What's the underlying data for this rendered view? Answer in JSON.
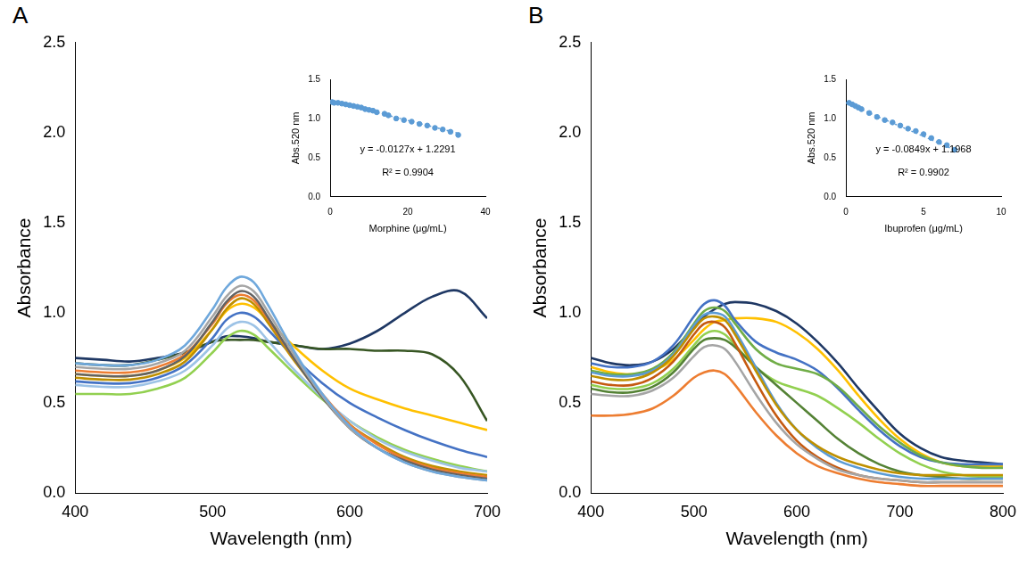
{
  "chart_data": [
    {
      "type": "line",
      "title": "A",
      "xlabel": "Wavelength (nm)",
      "ylabel": "Absorbance",
      "grid": false,
      "xlim": [
        400,
        700
      ],
      "xticks": [
        400,
        500,
        600,
        700
      ],
      "ylim": [
        0,
        2.5
      ],
      "yticks": [
        {
          "value": 0,
          "label": "0.0"
        },
        {
          "value": 0.5,
          "label": "0.5"
        },
        {
          "value": 1,
          "label": "1.0"
        },
        {
          "value": 1.5,
          "label": "1.5"
        },
        {
          "value": 2,
          "label": "2.0"
        },
        {
          "value": 2.5,
          "label": "2.5"
        }
      ],
      "x": [
        400,
        420,
        440,
        460,
        480,
        500,
        510,
        520,
        530,
        540,
        560,
        580,
        600,
        620,
        640,
        660,
        680,
        700
      ],
      "series": [
        {
          "color": "#6fa8dc",
          "values": [
            0.72,
            0.71,
            0.71,
            0.74,
            0.82,
            1.02,
            1.14,
            1.2,
            1.17,
            1.05,
            0.78,
            0.55,
            0.37,
            0.25,
            0.17,
            0.12,
            0.09,
            0.07
          ]
        },
        {
          "color": "#a5a5a5",
          "values": [
            0.7,
            0.69,
            0.69,
            0.72,
            0.79,
            0.98,
            1.09,
            1.15,
            1.12,
            1.01,
            0.76,
            0.54,
            0.36,
            0.25,
            0.17,
            0.12,
            0.09,
            0.07
          ]
        },
        {
          "color": "#636363",
          "values": [
            0.66,
            0.65,
            0.65,
            0.68,
            0.76,
            0.95,
            1.06,
            1.12,
            1.09,
            0.98,
            0.74,
            0.53,
            0.36,
            0.25,
            0.18,
            0.13,
            0.1,
            0.08
          ]
        },
        {
          "color": "#ed7d31",
          "values": [
            0.68,
            0.67,
            0.67,
            0.7,
            0.77,
            0.94,
            1.05,
            1.1,
            1.07,
            0.97,
            0.74,
            0.55,
            0.38,
            0.27,
            0.19,
            0.14,
            0.11,
            0.09
          ]
        },
        {
          "color": "#bf9000",
          "values": [
            0.64,
            0.63,
            0.63,
            0.66,
            0.73,
            0.91,
            1.02,
            1.08,
            1.05,
            0.95,
            0.73,
            0.54,
            0.38,
            0.28,
            0.2,
            0.15,
            0.12,
            0.1
          ]
        },
        {
          "color": "#9dc3e6",
          "values": [
            0.6,
            0.59,
            0.59,
            0.62,
            0.68,
            0.82,
            0.91,
            0.95,
            0.93,
            0.85,
            0.68,
            0.53,
            0.4,
            0.3,
            0.23,
            0.18,
            0.14,
            0.12
          ]
        },
        {
          "color": "#92d050",
          "values": [
            0.55,
            0.55,
            0.55,
            0.58,
            0.64,
            0.78,
            0.86,
            0.9,
            0.88,
            0.81,
            0.66,
            0.52,
            0.4,
            0.31,
            0.24,
            0.19,
            0.15,
            0.12
          ]
        },
        {
          "color": "#4472c4",
          "values": [
            0.62,
            0.61,
            0.61,
            0.64,
            0.71,
            0.86,
            0.96,
            1.0,
            0.98,
            0.91,
            0.75,
            0.61,
            0.5,
            0.42,
            0.35,
            0.29,
            0.24,
            0.2
          ]
        },
        {
          "color": "#ffc000",
          "values": [
            0.66,
            0.65,
            0.65,
            0.68,
            0.75,
            0.91,
            1.01,
            1.05,
            1.03,
            0.96,
            0.81,
            0.68,
            0.58,
            0.52,
            0.47,
            0.43,
            0.39,
            0.35
          ]
        },
        {
          "color": "#375623",
          "values": [
            0.72,
            0.71,
            0.71,
            0.74,
            0.78,
            0.84,
            0.85,
            0.85,
            0.85,
            0.84,
            0.82,
            0.8,
            0.8,
            0.79,
            0.79,
            0.77,
            0.65,
            0.4
          ]
        },
        {
          "color": "#1f3864",
          "values": [
            0.75,
            0.74,
            0.73,
            0.75,
            0.78,
            0.84,
            0.87,
            0.87,
            0.86,
            0.84,
            0.82,
            0.8,
            0.83,
            0.9,
            1.0,
            1.09,
            1.12,
            0.97
          ]
        }
      ]
    },
    {
      "type": "scatter",
      "xlabel": "Morphine (μg/mL)",
      "ylabel": "Abs.520 nm",
      "grid": false,
      "xlim": [
        0,
        40
      ],
      "xticks": [
        0,
        20,
        40
      ],
      "ylim": [
        0,
        1.5
      ],
      "yticks": [
        {
          "value": 0,
          "label": "0.0"
        },
        {
          "value": 0.5,
          "label": "0.5"
        },
        {
          "value": 1,
          "label": "1.0"
        },
        {
          "value": 1.5,
          "label": "1.5"
        }
      ],
      "annotations": [
        "y = -0.0127x + 1.2291",
        "R² = 0.9904"
      ],
      "series": [
        {
          "color": "#5b9bd5",
          "marker": "circle",
          "x": [
            0.5,
            1,
            2,
            3,
            4,
            5,
            6,
            7,
            8,
            9,
            10,
            11,
            12,
            14,
            15,
            17,
            19,
            21,
            23,
            25,
            27,
            29,
            31,
            33
          ],
          "values": [
            1.21,
            1.2,
            1.2,
            1.19,
            1.18,
            1.17,
            1.16,
            1.15,
            1.14,
            1.12,
            1.11,
            1.1,
            1.08,
            1.06,
            1.04,
            1.0,
            0.98,
            0.96,
            0.93,
            0.91,
            0.88,
            0.86,
            0.83,
            0.79
          ]
        },
        {
          "type": "line",
          "line_style": "dotted",
          "color": "#5b9bd5",
          "x": [
            0,
            33
          ],
          "values": [
            1.23,
            0.81
          ]
        }
      ]
    },
    {
      "type": "line",
      "title": "B",
      "xlabel": "Wavelength (nm)",
      "ylabel": "Absorbance",
      "grid": false,
      "xlim": [
        400,
        800
      ],
      "xticks": [
        400,
        500,
        600,
        700,
        800
      ],
      "ylim": [
        0,
        2.5
      ],
      "yticks": [
        {
          "value": 0,
          "label": "0.0"
        },
        {
          "value": 0.5,
          "label": "0.5"
        },
        {
          "value": 1,
          "label": "1.0"
        },
        {
          "value": 1.5,
          "label": "1.5"
        },
        {
          "value": 2,
          "label": "2.0"
        },
        {
          "value": 2.5,
          "label": "2.5"
        }
      ],
      "x": [
        400,
        420,
        440,
        460,
        480,
        500,
        510,
        520,
        530,
        540,
        560,
        580,
        600,
        620,
        640,
        660,
        680,
        700,
        720,
        740,
        760,
        780,
        800
      ],
      "series": [
        {
          "color": "#ed7d31",
          "values": [
            0.43,
            0.43,
            0.44,
            0.47,
            0.54,
            0.64,
            0.67,
            0.68,
            0.66,
            0.6,
            0.45,
            0.32,
            0.22,
            0.15,
            0.11,
            0.08,
            0.06,
            0.05,
            0.04,
            0.04,
            0.04,
            0.04,
            0.04
          ]
        },
        {
          "color": "#a5a5a5",
          "values": [
            0.55,
            0.54,
            0.54,
            0.57,
            0.64,
            0.76,
            0.81,
            0.82,
            0.8,
            0.73,
            0.55,
            0.39,
            0.27,
            0.19,
            0.13,
            0.1,
            0.08,
            0.07,
            0.06,
            0.06,
            0.06,
            0.06,
            0.06
          ]
        },
        {
          "color": "#c55a11",
          "values": [
            0.62,
            0.6,
            0.6,
            0.64,
            0.73,
            0.88,
            0.94,
            0.95,
            0.92,
            0.83,
            0.62,
            0.43,
            0.29,
            0.2,
            0.14,
            0.1,
            0.08,
            0.07,
            0.06,
            0.06,
            0.06,
            0.06,
            0.06
          ]
        },
        {
          "color": "#bf9000",
          "values": [
            0.65,
            0.63,
            0.63,
            0.67,
            0.76,
            0.91,
            0.97,
            0.98,
            0.96,
            0.88,
            0.68,
            0.49,
            0.35,
            0.26,
            0.2,
            0.16,
            0.13,
            0.11,
            0.1,
            0.1,
            0.1,
            0.1,
            0.1
          ]
        },
        {
          "color": "#5b9bd5",
          "values": [
            0.67,
            0.65,
            0.65,
            0.68,
            0.77,
            0.93,
            0.99,
            1.0,
            0.98,
            0.9,
            0.7,
            0.5,
            0.35,
            0.25,
            0.18,
            0.14,
            0.11,
            0.09,
            0.08,
            0.08,
            0.08,
            0.08,
            0.08
          ]
        },
        {
          "color": "#548235",
          "values": [
            0.58,
            0.56,
            0.56,
            0.59,
            0.67,
            0.8,
            0.85,
            0.86,
            0.85,
            0.81,
            0.7,
            0.6,
            0.5,
            0.4,
            0.3,
            0.22,
            0.16,
            0.12,
            0.1,
            0.09,
            0.08,
            0.08,
            0.08
          ]
        },
        {
          "color": "#92d050",
          "values": [
            0.6,
            0.58,
            0.58,
            0.61,
            0.69,
            0.82,
            0.88,
            0.9,
            0.88,
            0.82,
            0.7,
            0.62,
            0.58,
            0.54,
            0.47,
            0.39,
            0.3,
            0.22,
            0.16,
            0.12,
            0.1,
            0.09,
            0.09
          ]
        },
        {
          "color": "#70ad47",
          "values": [
            0.68,
            0.66,
            0.66,
            0.69,
            0.78,
            0.94,
            1.01,
            1.03,
            1.01,
            0.94,
            0.8,
            0.72,
            0.69,
            0.66,
            0.59,
            0.48,
            0.37,
            0.28,
            0.21,
            0.17,
            0.15,
            0.14,
            0.14
          ]
        },
        {
          "color": "#4472c4",
          "values": [
            0.72,
            0.7,
            0.7,
            0.73,
            0.82,
            0.98,
            1.05,
            1.07,
            1.04,
            0.96,
            0.84,
            0.78,
            0.74,
            0.68,
            0.58,
            0.46,
            0.35,
            0.26,
            0.2,
            0.17,
            0.16,
            0.16,
            0.16
          ]
        },
        {
          "color": "#ffc000",
          "values": [
            0.7,
            0.67,
            0.66,
            0.68,
            0.74,
            0.85,
            0.91,
            0.95,
            0.96,
            0.97,
            0.97,
            0.95,
            0.89,
            0.8,
            0.68,
            0.54,
            0.41,
            0.3,
            0.22,
            0.17,
            0.15,
            0.15,
            0.15
          ]
        },
        {
          "color": "#1f3864",
          "values": [
            0.75,
            0.72,
            0.71,
            0.73,
            0.8,
            0.92,
            0.98,
            1.02,
            1.05,
            1.06,
            1.05,
            1.01,
            0.94,
            0.84,
            0.72,
            0.58,
            0.45,
            0.33,
            0.25,
            0.2,
            0.18,
            0.17,
            0.16
          ]
        }
      ]
    },
    {
      "type": "scatter",
      "xlabel": "Ibuprofen (μg/mL)",
      "ylabel": "Abs.520 nm",
      "grid": false,
      "xlim": [
        0,
        10
      ],
      "xticks": [
        0,
        5,
        10
      ],
      "ylim": [
        0,
        1.5
      ],
      "yticks": [
        {
          "value": 0,
          "label": "0.0"
        },
        {
          "value": 0.5,
          "label": "0.5"
        },
        {
          "value": 1,
          "label": "1.0"
        },
        {
          "value": 1.5,
          "label": "1.5"
        }
      ],
      "annotations": [
        "y = -0.0849x + 1.1968",
        "R² = 0.9902"
      ],
      "series": [
        {
          "color": "#5b9bd5",
          "marker": "circle",
          "x": [
            0.2,
            0.4,
            0.6,
            0.8,
            1,
            1.5,
            2,
            2.5,
            3,
            3.5,
            4,
            4.5,
            5,
            5.5,
            6,
            6.5,
            7
          ],
          "values": [
            1.2,
            1.18,
            1.16,
            1.14,
            1.12,
            1.07,
            1.02,
            0.98,
            0.95,
            0.91,
            0.87,
            0.84,
            0.8,
            0.75,
            0.7,
            0.66,
            0.6
          ]
        },
        {
          "type": "line",
          "line_style": "dotted",
          "color": "#5b9bd5",
          "x": [
            0,
            7
          ],
          "values": [
            1.2,
            0.6
          ]
        }
      ]
    }
  ]
}
